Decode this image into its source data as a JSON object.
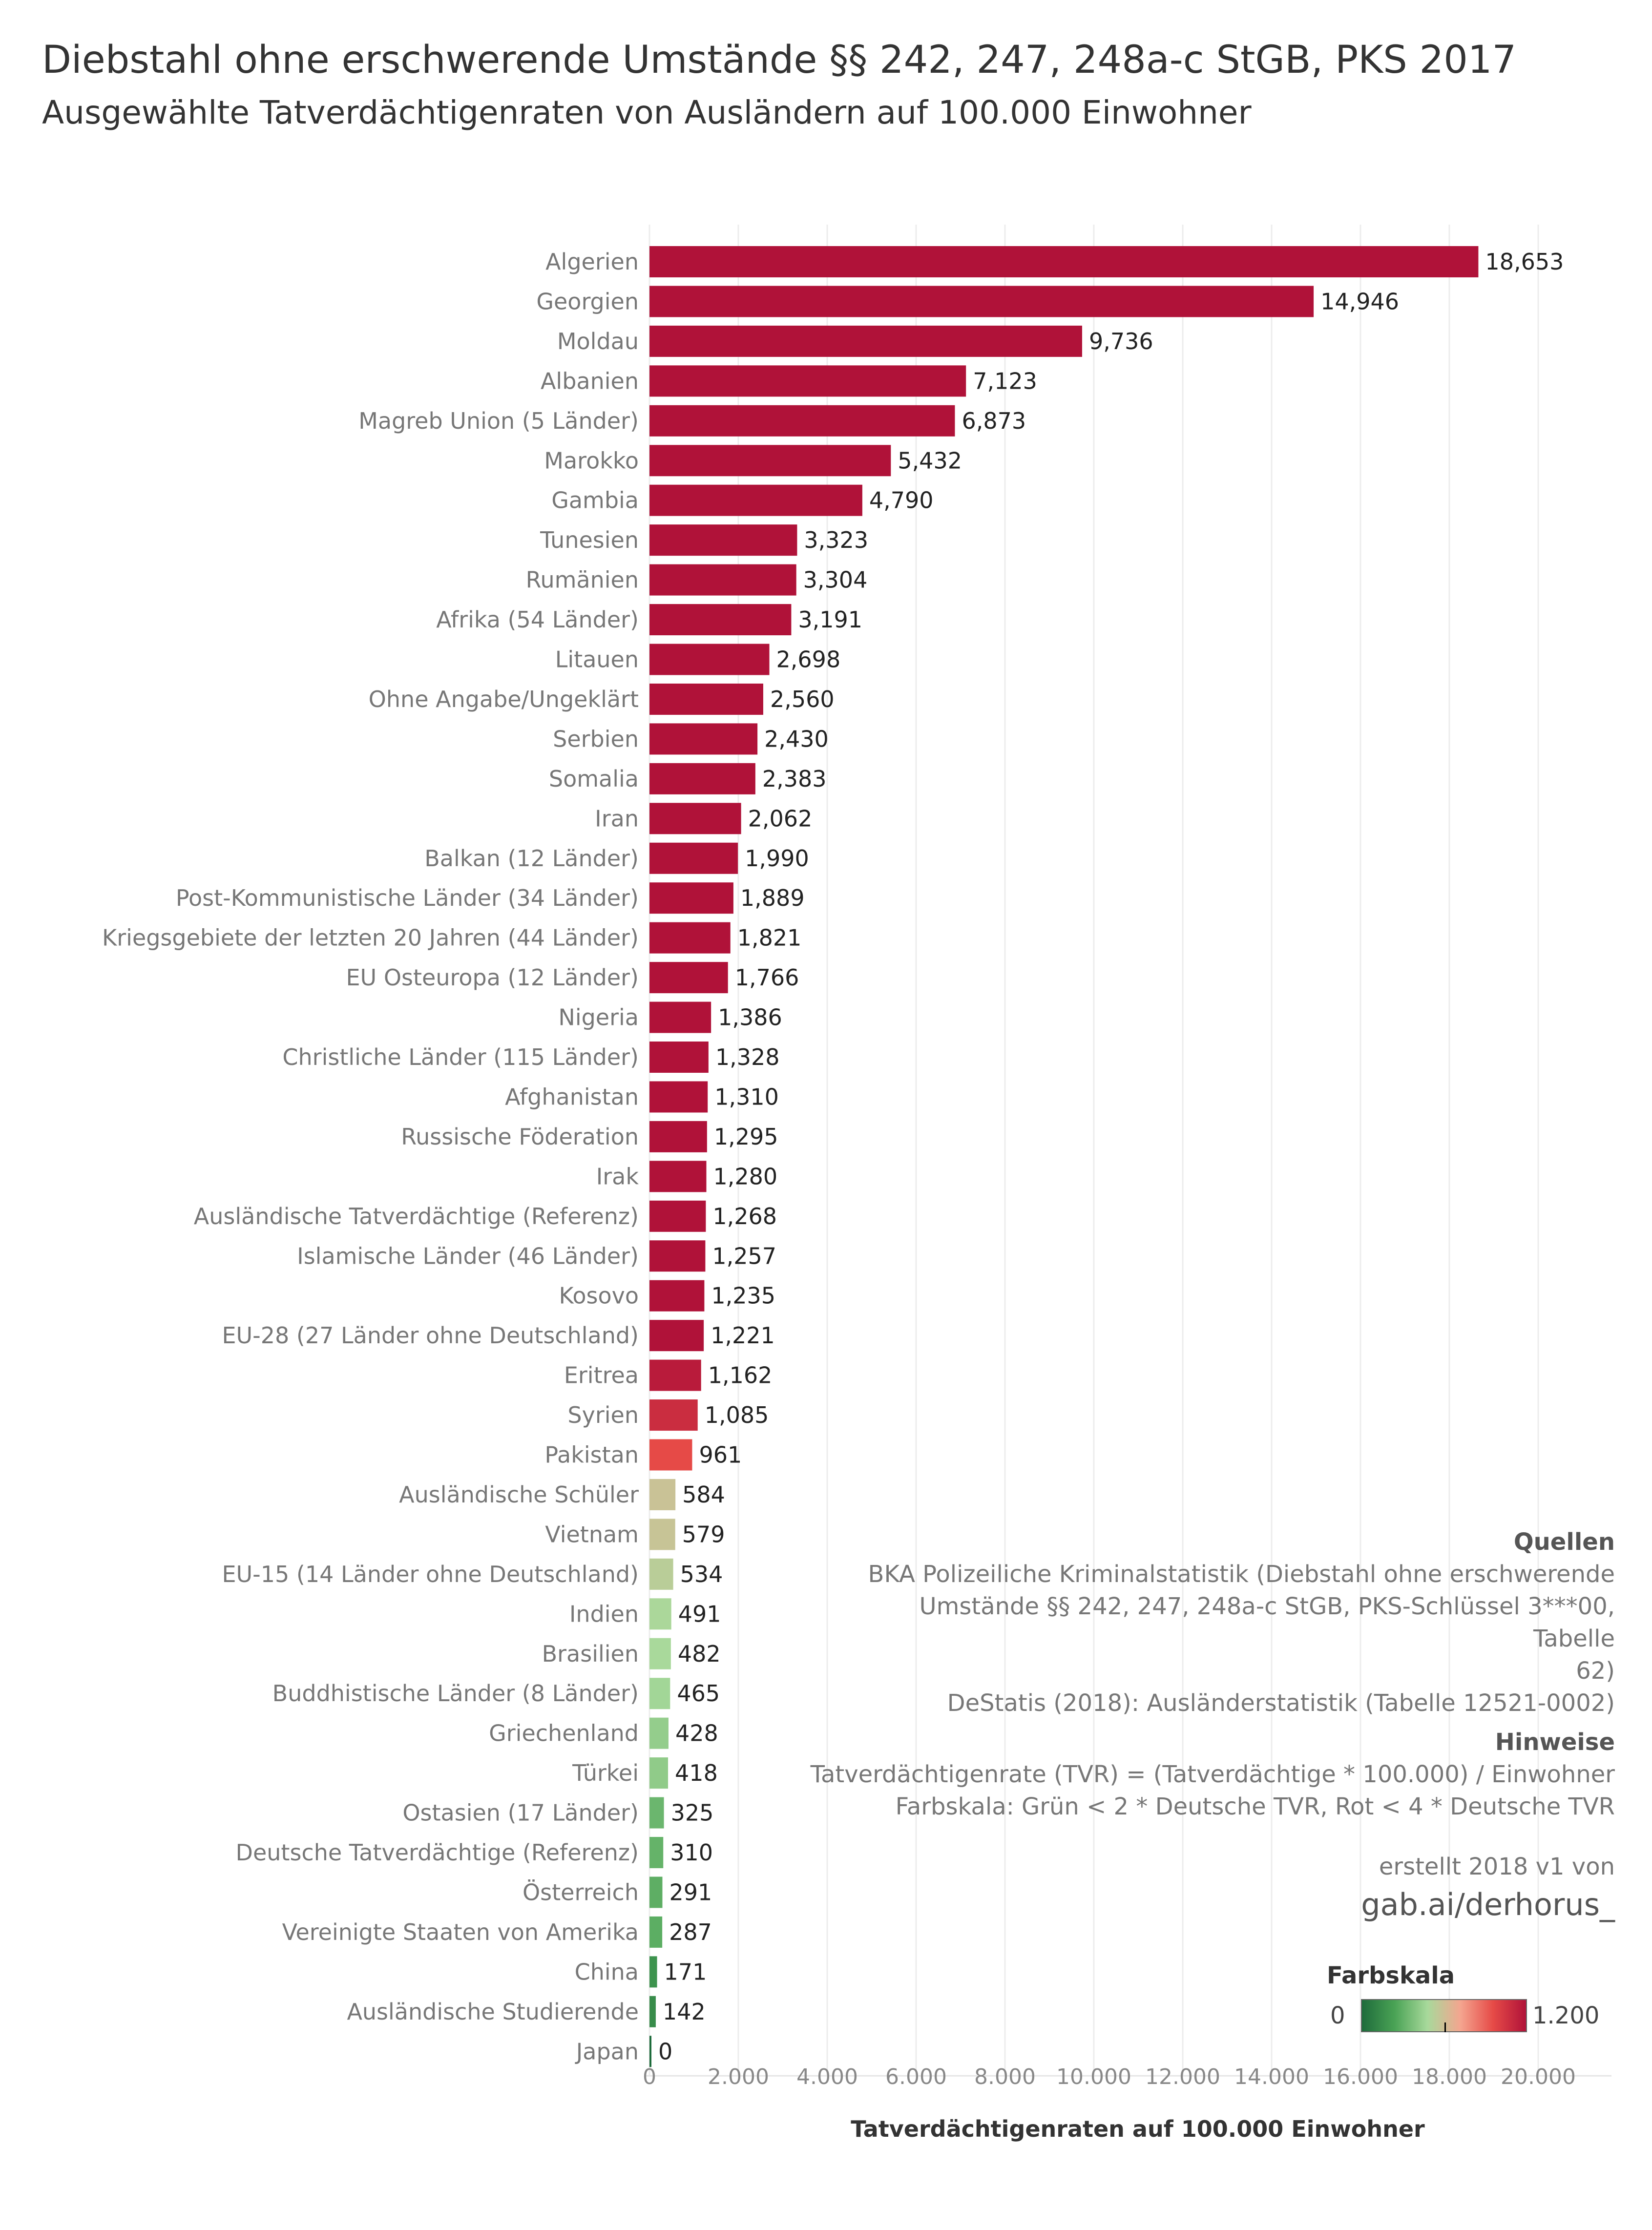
{
  "title": "Diebstahl ohne erschwerende Umstände §§ 242, 247, 248a-c StGB, PKS 2017",
  "subtitle": "Ausgewählte Tatverdächtigenraten von Ausländern auf 100.000 Einwohner",
  "info": {
    "sources_heading": "Quellen",
    "sources_lines": [
      "BKA Polizeiliche Kriminalstatistik (Diebstahl ohne erschwerende",
      "Umstände §§ 242, 247, 248a-c StGB, PKS-Schlüssel 3***00, Tabelle",
      "62)",
      "DeStatis (2018): Ausländerstatistik (Tabelle 12521-0002)"
    ],
    "notes_heading": "Hinweise",
    "notes_lines": [
      "Tatverdächtigenrate (TVR) = (Tatverdächtige * 100.000) / Einwohner",
      "Farbskala: Grün < 2 * Deutsche TVR, Rot < 4 * Deutsche TVR"
    ],
    "credit": "erstellt 2018 v1 von",
    "credit_link": "gab.ai/derhorus_"
  },
  "color_scale": {
    "title": "Farbskala",
    "min_label": "0",
    "max_label": "1.200",
    "min": 0,
    "max": 1200,
    "colors": [
      "#1e6b3b",
      "#4aa355",
      "#a8d99b",
      "#f4a58f",
      "#e64a47",
      "#b01239"
    ]
  },
  "chart_data": {
    "type": "bar",
    "orientation": "horizontal",
    "xlabel": "Tatverdächtigenraten auf 100.000 Einwohner",
    "xlim": [
      0,
      20000
    ],
    "x_ticks": [
      0,
      2000,
      4000,
      6000,
      8000,
      10000,
      12000,
      14000,
      16000,
      18000,
      20000
    ],
    "x_tick_labels": [
      "0",
      "2.000",
      "4.000",
      "6.000",
      "8.000",
      "10.000",
      "12.000",
      "14.000",
      "16.000",
      "18.000",
      "20.000"
    ],
    "grid": "vertical",
    "categories": [
      "Algerien",
      "Georgien",
      "Moldau",
      "Albanien",
      "Magreb Union (5 Länder)",
      "Marokko",
      "Gambia",
      "Tunesien",
      "Rumänien",
      "Afrika (54 Länder)",
      "Litauen",
      "Ohne Angabe/Ungeklärt",
      "Serbien",
      "Somalia",
      "Iran",
      "Balkan (12 Länder)",
      "Post-Kommunistische Länder (34 Länder)",
      "Kriegsgebiete der letzten 20 Jahren (44 Länder)",
      "EU Osteuropa (12 Länder)",
      "Nigeria",
      "Christliche Länder (115 Länder)",
      "Afghanistan",
      "Russische Föderation",
      "Irak",
      "Ausländische Tatverdächtige (Referenz)",
      "Islamische Länder (46 Länder)",
      "Kosovo",
      "EU-28 (27 Länder ohne Deutschland)",
      "Eritrea",
      "Syrien",
      "Pakistan",
      "Ausländische Schüler",
      "Vietnam",
      "EU-15 (14 Länder ohne Deutschland)",
      "Indien",
      "Brasilien",
      "Buddhistische Länder (8 Länder)",
      "Griechenland",
      "Türkei",
      "Ostasien (17 Länder)",
      "Deutsche Tatverdächtige (Referenz)",
      "Österreich",
      "Vereinigte Staaten von Amerika",
      "China",
      "Ausländische Studierende",
      "Japan"
    ],
    "values": [
      18653,
      14946,
      9736,
      7123,
      6873,
      5432,
      4790,
      3323,
      3304,
      3191,
      2698,
      2560,
      2430,
      2383,
      2062,
      1990,
      1889,
      1821,
      1766,
      1386,
      1328,
      1310,
      1295,
      1280,
      1268,
      1257,
      1235,
      1221,
      1162,
      1085,
      961,
      584,
      579,
      534,
      491,
      482,
      465,
      428,
      418,
      325,
      310,
      291,
      287,
      171,
      142,
      0
    ],
    "value_labels": [
      "18,653",
      "14,946",
      "9,736",
      "7,123",
      "6,873",
      "5,432",
      "4,790",
      "3,323",
      "3,304",
      "3,191",
      "2,698",
      "2,560",
      "2,430",
      "2,383",
      "2,062",
      "1,990",
      "1,889",
      "1,821",
      "1,766",
      "1,386",
      "1,328",
      "1,310",
      "1,295",
      "1,280",
      "1,268",
      "1,257",
      "1,235",
      "1,221",
      "1,162",
      "1,085",
      "961",
      "584",
      "579",
      "534",
      "491",
      "482",
      "465",
      "428",
      "418",
      "325",
      "310",
      "291",
      "287",
      "171",
      "142",
      "0"
    ]
  }
}
